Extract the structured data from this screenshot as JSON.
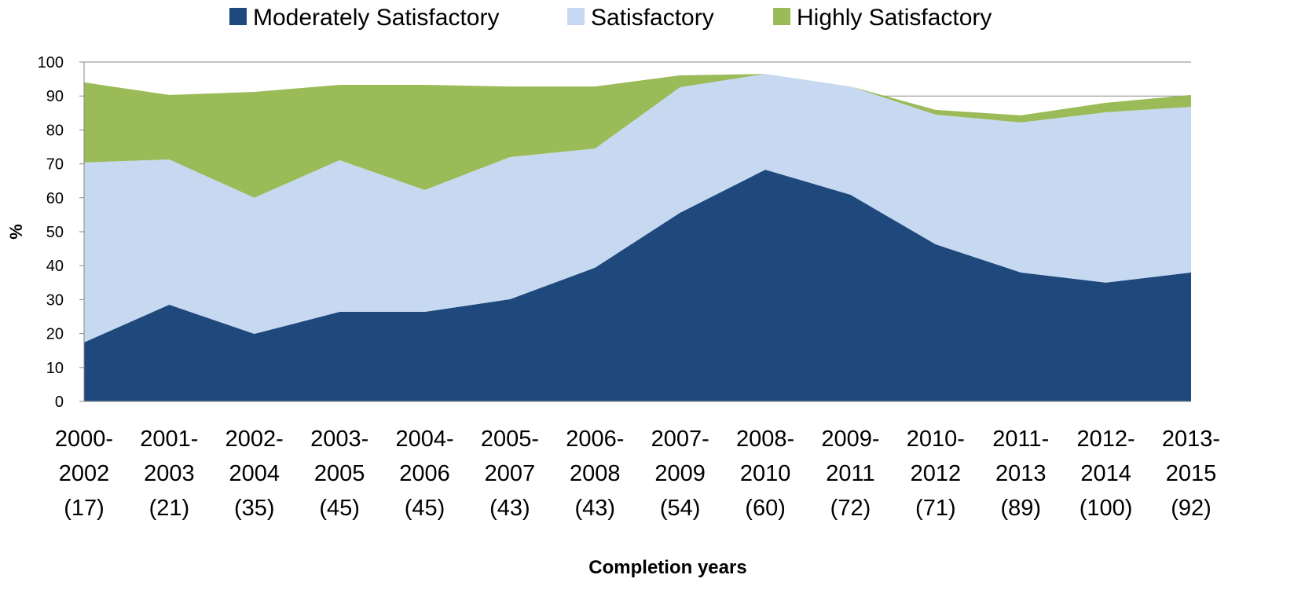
{
  "chart_data": {
    "type": "stacked_area",
    "x_label": "Completion years",
    "y_label": "%",
    "categories": [
      "2000-\n2002\n(17)",
      "2001-\n2003\n(21)",
      "2002-\n2004\n(35)",
      "2003-\n2005\n(45)",
      "2004-\n2006\n(45)",
      "2005-\n2007\n(43)",
      "2006-\n2008\n(43)",
      "2007-\n2009\n(54)",
      "2008-\n2010\n(60)",
      "2009-\n2011\n(72)",
      "2010-\n2012\n(71)",
      "2011-\n2013\n(89)",
      "2012-\n2014\n(100)",
      "2013-\n2015\n(92)"
    ],
    "series": [
      {
        "name": "Moderately Satisfactory",
        "color": "#1f497d",
        "values": [
          17.4,
          28.5,
          19.9,
          26.4,
          26.4,
          30.1,
          39.4,
          55.6,
          68.3,
          60.9,
          46.3,
          38.0,
          35.0,
          38.0
        ]
      },
      {
        "name": "Satisfactory",
        "color": "#c6d9f1",
        "values": [
          53.0,
          42.8,
          40.1,
          44.7,
          35.9,
          41.9,
          35.1,
          37.0,
          28.2,
          31.9,
          38.2,
          44.2,
          50.2,
          48.8
        ]
      },
      {
        "name": "Highly Satisfactory",
        "color": "#9bbb59",
        "values": [
          23.6,
          19.0,
          31.2,
          22.2,
          31.0,
          20.8,
          18.3,
          3.5,
          0,
          0,
          1.4,
          2.1,
          2.8,
          3.5
        ]
      }
    ],
    "ylim": [
      0,
      100
    ],
    "yticks": [
      0,
      10,
      20,
      30,
      40,
      50,
      60,
      70,
      80,
      90,
      100
    ],
    "grid": true,
    "legend": "top"
  }
}
